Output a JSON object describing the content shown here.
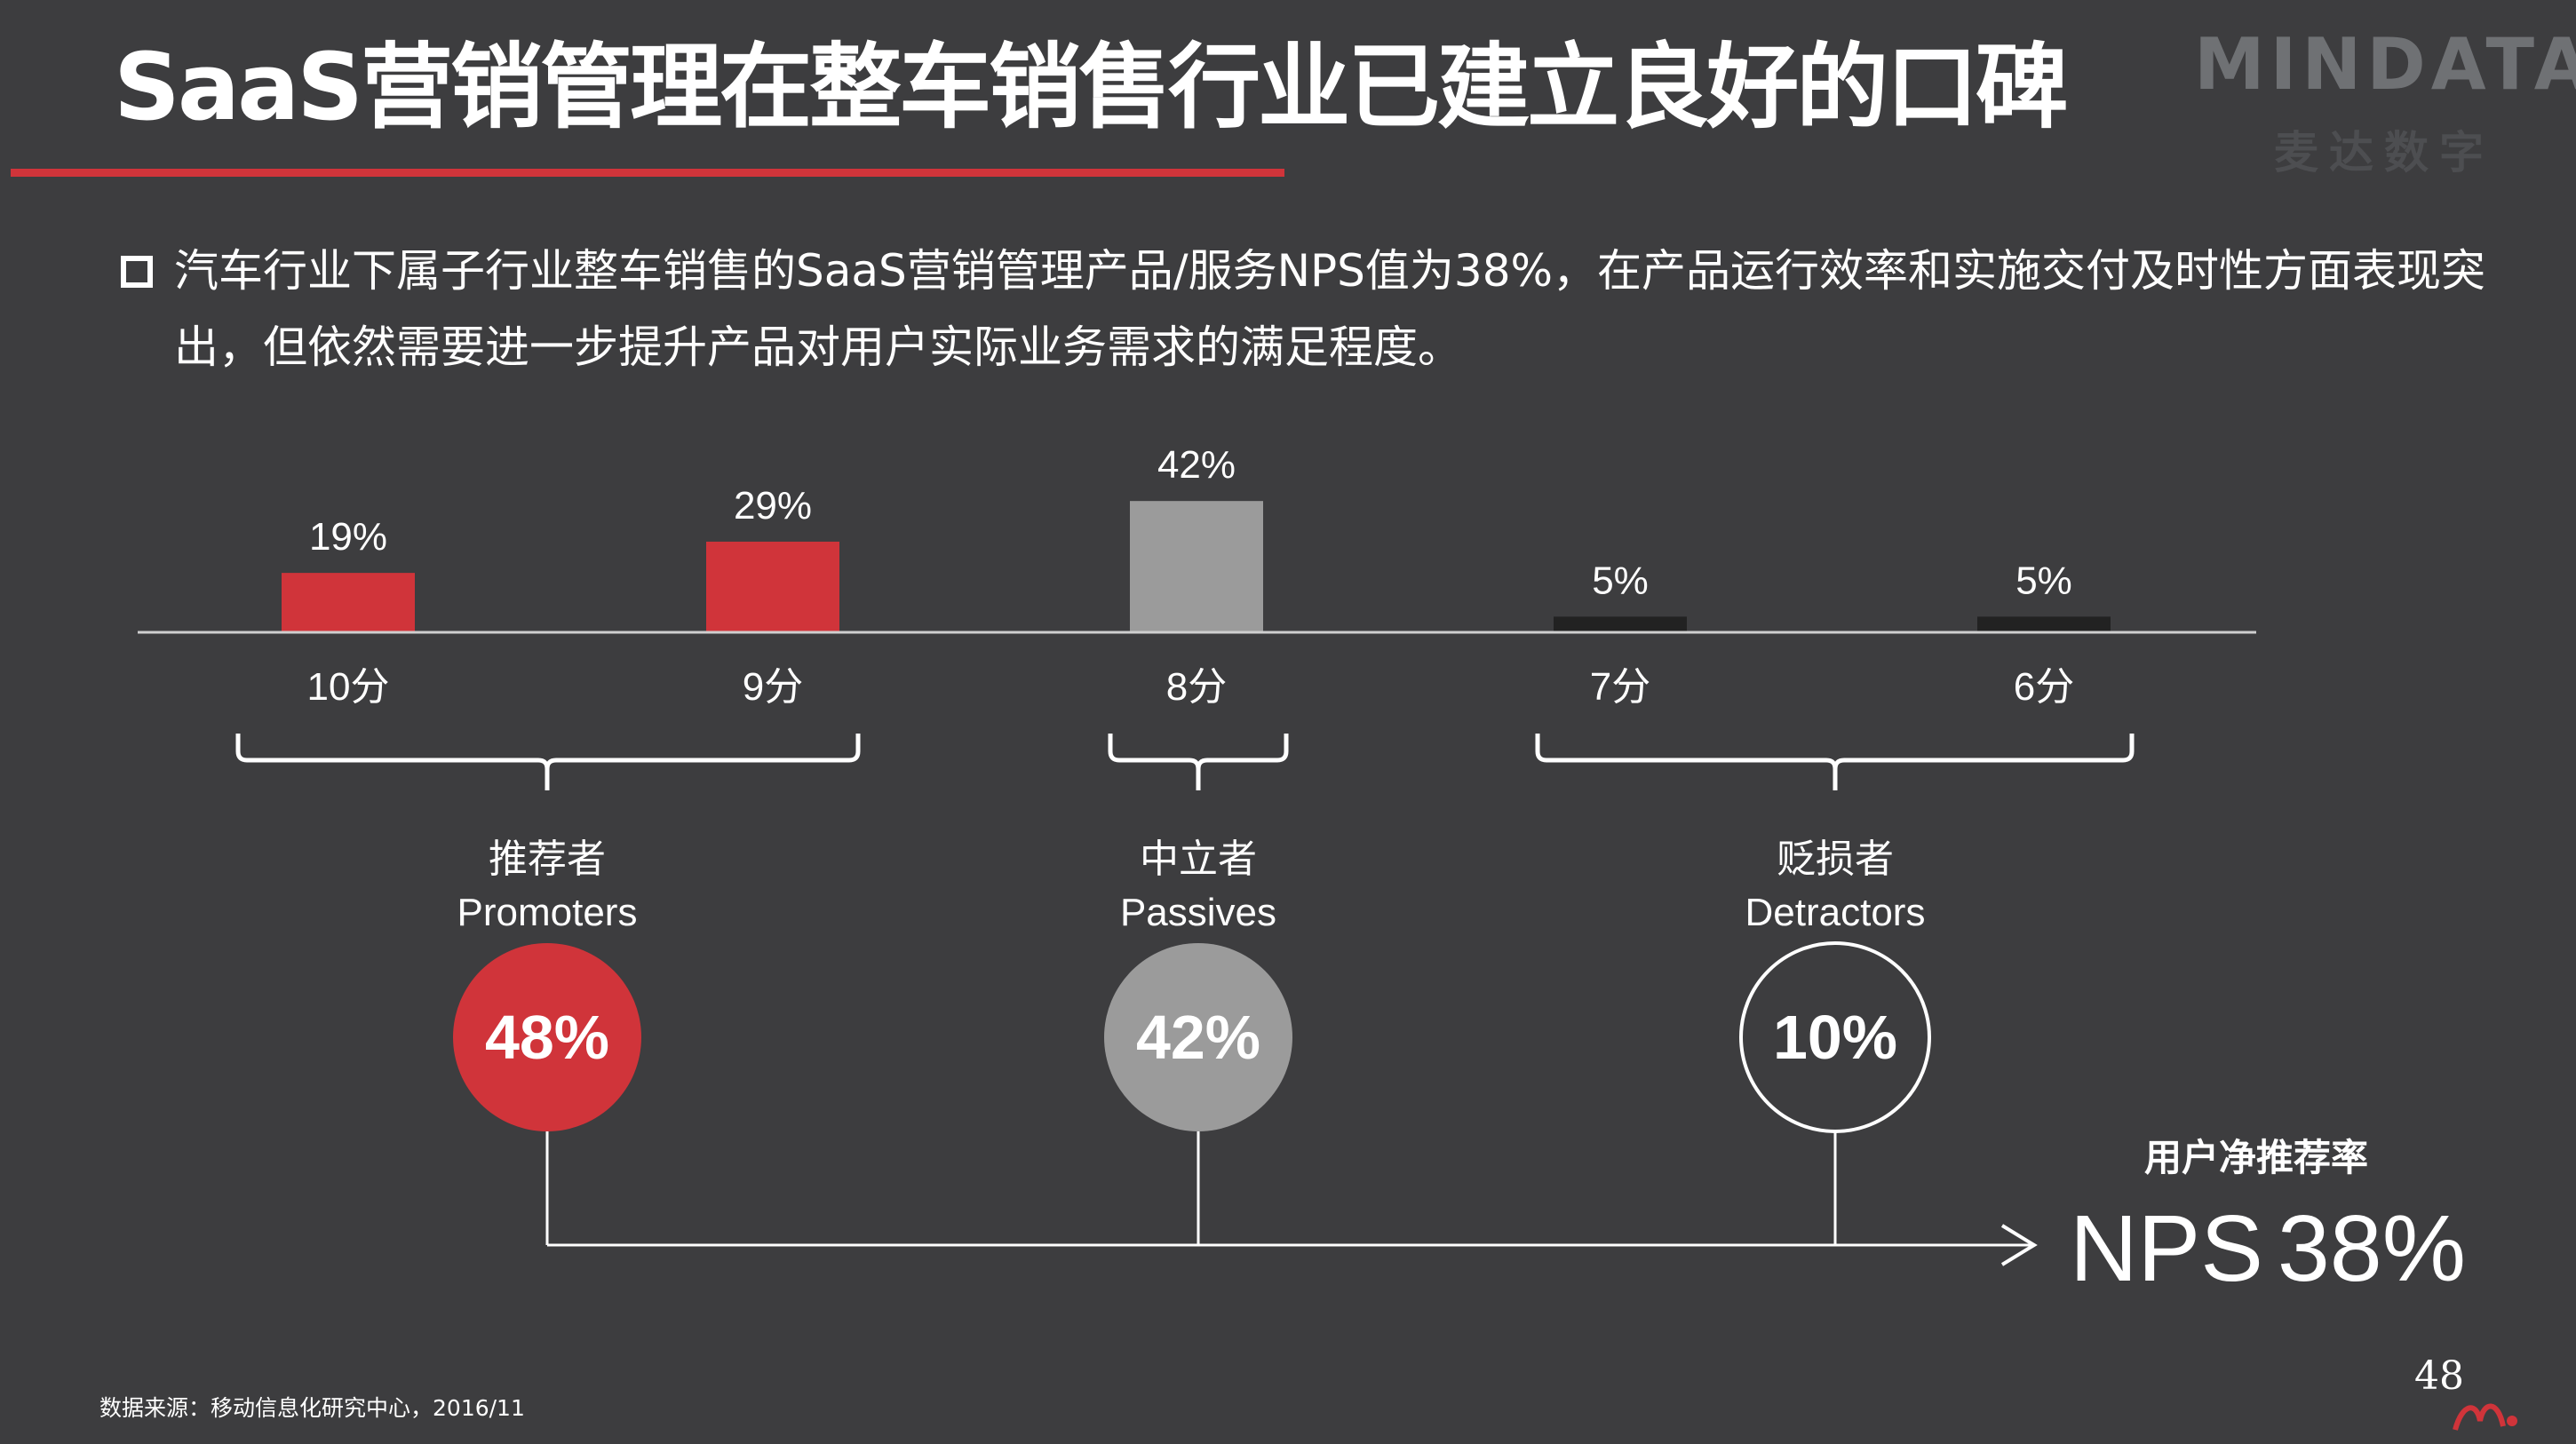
{
  "title": "SaaS营销管理在整车销售行业已建立良好的口碑",
  "logo": {
    "brand": "MINDATA",
    "sub": "麦达数字"
  },
  "description": "汽车行业下属子行业整车销售的SaaS营销管理产品/服务NPS值为38%，在产品运行效率和实施交付及时性方面表现突出，但依然需要进一步提升产品对用户实际业务需求的满足程度。",
  "colors": {
    "promoter": "#d0343a",
    "passive": "#9b9b9b",
    "detractor": "#222222",
    "background": "#3d3d3f"
  },
  "chart_data": {
    "type": "bar",
    "categories": [
      "10分",
      "9分",
      "8分",
      "7分",
      "6分"
    ],
    "values": [
      19,
      29,
      42,
      5,
      5
    ],
    "value_labels": [
      "19%",
      "29%",
      "42%",
      "5%",
      "5%"
    ],
    "bar_colors": [
      "#d0343a",
      "#d0343a",
      "#9b9b9b",
      "#222222",
      "#222222"
    ],
    "ylim": [
      0,
      100
    ],
    "groups": [
      {
        "name_cn": "推荐者",
        "name_en": "Promoters",
        "value": "48%",
        "style": "filled-red"
      },
      {
        "name_cn": "中立者",
        "name_en": "Passives",
        "value": "42%",
        "style": "filled-gray"
      },
      {
        "name_cn": "贬损者",
        "name_en": "Detractors",
        "value": "10%",
        "style": "outline"
      }
    ],
    "nps": {
      "label": "用户净推荐率",
      "name": "NPS",
      "value": "38%"
    }
  },
  "source": "数据来源：移动信息化研究中心，2016/11",
  "page_number": "48"
}
